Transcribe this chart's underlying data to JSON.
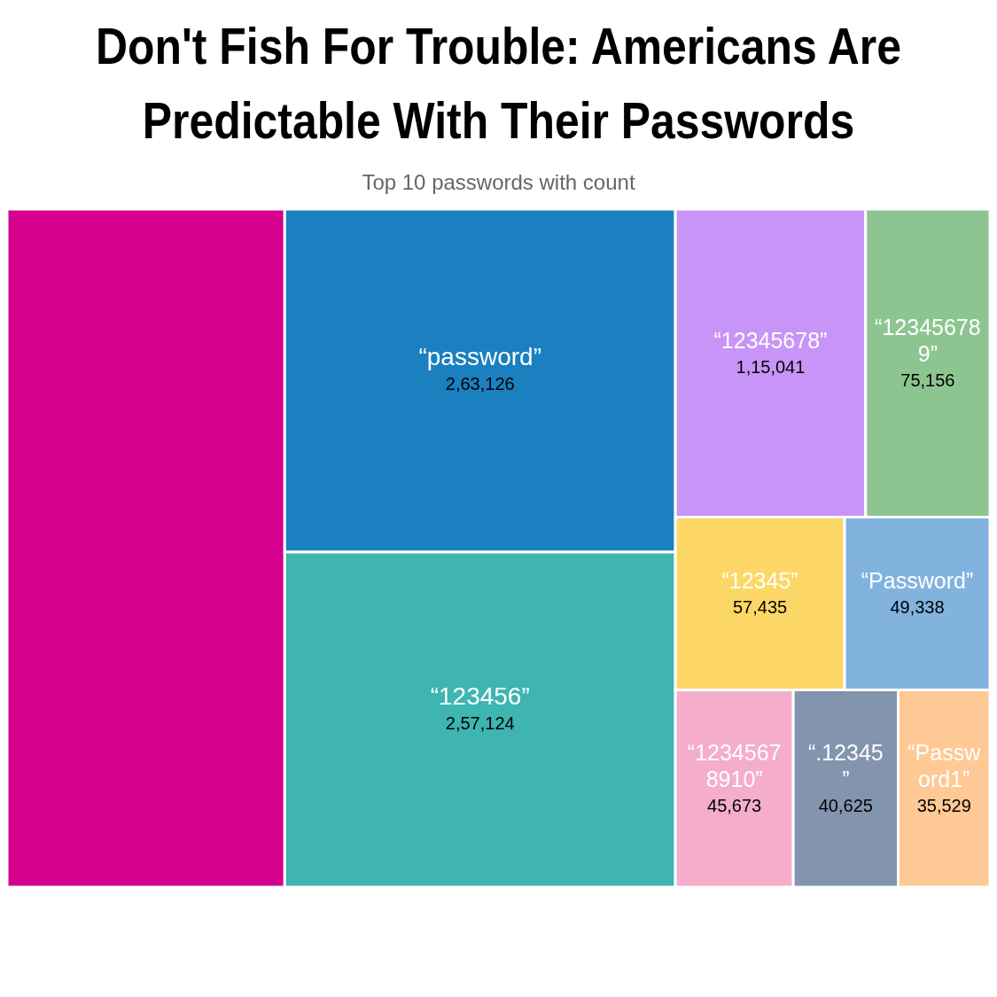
{
  "chart_data": {
    "type": "other",
    "title": "Don't Fish For Trouble: Americans Are Predictable With Their Passwords",
    "subtitle": "Top 10 passwords with count",
    "categories": [
      null,
      "“password”",
      "“123456”",
      "“12345678”",
      "“123456789”",
      "“12345”",
      "“Password”",
      "“12345678910”",
      "“.12345”",
      "“Password1”"
    ],
    "values": [
      null,
      263126,
      257124,
      115041,
      75156,
      57435,
      49338,
      45673,
      40625,
      35529
    ],
    "value_labels": [
      null,
      "2,63,126",
      "2,57,124",
      "1,15,041",
      "75,156",
      "57,435",
      "49,338",
      "45,673",
      "40,625",
      "35,529"
    ],
    "colors": [
      "#d6008f",
      "#1a80bf",
      "#3eb5b1",
      "#c994f7",
      "#8dc591",
      "#fdd766",
      "#82b3df",
      "#f4aecb",
      "#8394ae",
      "#fec995"
    ]
  }
}
